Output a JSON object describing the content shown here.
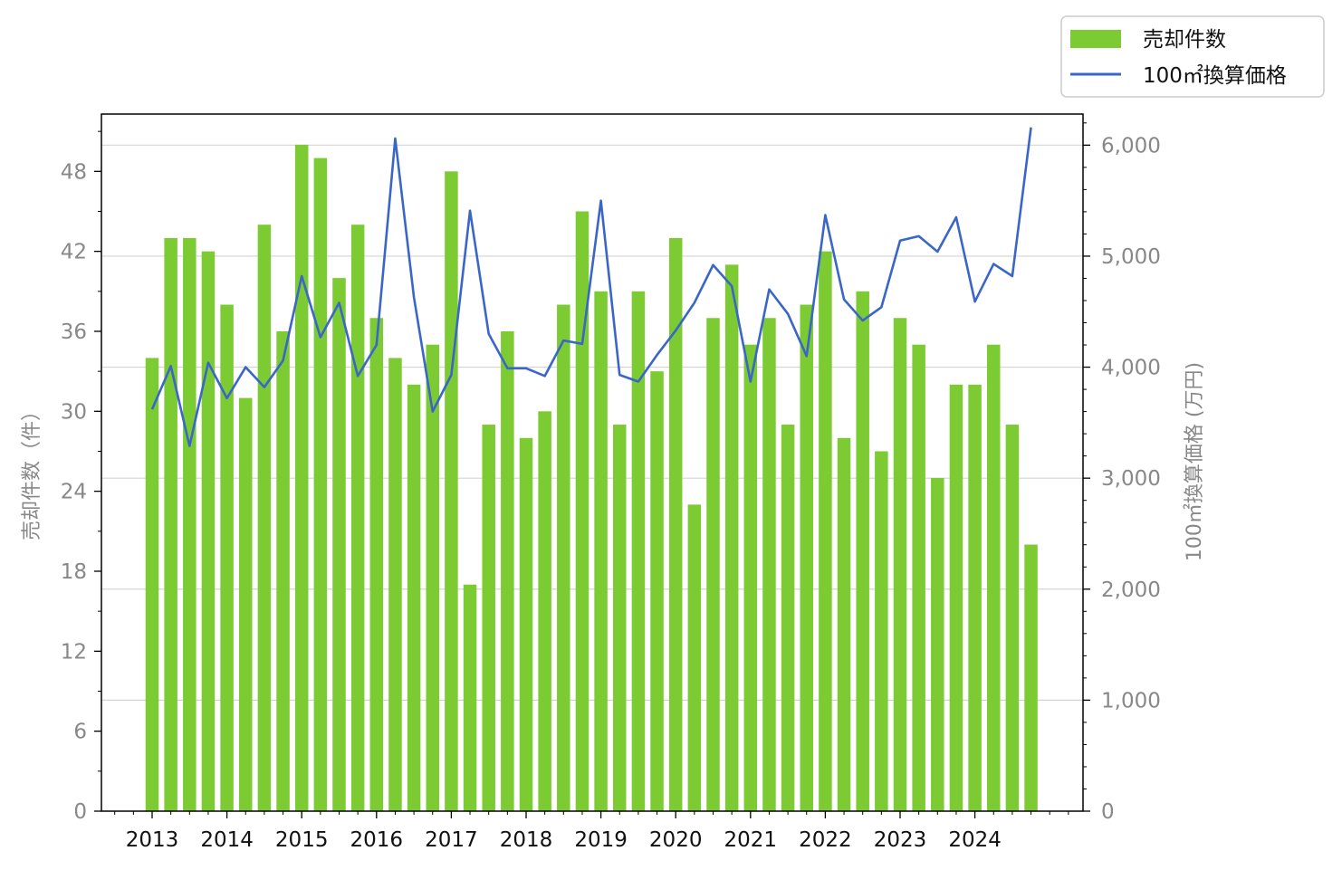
{
  "chart_data": {
    "type": "bar",
    "x_ticks": [
      "2013",
      "2014",
      "2015",
      "2016",
      "2017",
      "2018",
      "2019",
      "2020",
      "2021",
      "2022",
      "2023",
      "2024"
    ],
    "quarters": [
      "2013Q1",
      "2013Q2",
      "2013Q3",
      "2013Q4",
      "2014Q1",
      "2014Q2",
      "2014Q3",
      "2014Q4",
      "2015Q1",
      "2015Q2",
      "2015Q3",
      "2015Q4",
      "2016Q1",
      "2016Q2",
      "2016Q3",
      "2016Q4",
      "2017Q1",
      "2017Q2",
      "2017Q3",
      "2017Q4",
      "2018Q1",
      "2018Q2",
      "2018Q3",
      "2018Q4",
      "2019Q1",
      "2019Q2",
      "2019Q3",
      "2019Q4",
      "2020Q1",
      "2020Q2",
      "2020Q3",
      "2020Q4",
      "2021Q1",
      "2021Q2",
      "2021Q3",
      "2021Q4",
      "2022Q1",
      "2022Q2",
      "2022Q3",
      "2022Q4",
      "2023Q1",
      "2023Q2",
      "2023Q3",
      "2023Q4",
      "2024Q1",
      "2024Q2",
      "2024Q3",
      "2024Q4"
    ],
    "series": [
      {
        "name": "売却件数",
        "kind": "bar",
        "axis": "left",
        "color": "#7dcb33",
        "values": [
          34,
          43,
          43,
          42,
          38,
          31,
          44,
          36,
          50,
          49,
          40,
          44,
          37,
          34,
          32,
          35,
          48,
          17,
          29,
          36,
          28,
          30,
          38,
          45,
          39,
          29,
          39,
          33,
          43,
          23,
          37,
          41,
          35,
          37,
          29,
          38,
          42,
          28,
          39,
          27,
          37,
          35,
          25,
          32,
          32,
          35,
          29,
          20
        ]
      },
      {
        "name": "100㎡換算価格",
        "kind": "line",
        "axis": "right",
        "color": "#3a66c8",
        "values": [
          3620,
          4010,
          3290,
          4040,
          3720,
          4000,
          3820,
          4060,
          4820,
          4270,
          4580,
          3920,
          4200,
          6060,
          4630,
          3600,
          3930,
          5410,
          4300,
          3990,
          3990,
          3920,
          4240,
          4210,
          5500,
          3930,
          3870,
          4110,
          4330,
          4580,
          4920,
          4730,
          3870,
          4700,
          4480,
          4100,
          5370,
          4610,
          4420,
          4540,
          5140,
          5180,
          5040,
          5350,
          4590,
          4930,
          4820,
          6160
        ]
      }
    ],
    "y_left": {
      "label": "売却件数（件）",
      "ylim": [
        0,
        52.3
      ],
      "ticks": [
        0,
        6,
        12,
        18,
        24,
        30,
        36,
        42,
        48
      ]
    },
    "y_right": {
      "label": "100㎡換算価格 (万円)",
      "ylim": [
        0,
        6280
      ],
      "ticks": [
        0,
        1000,
        2000,
        3000,
        4000,
        5000,
        6000
      ],
      "tick_labels": [
        "0",
        "1,000",
        "2,000",
        "3,000",
        "4,000",
        "5,000",
        "6,000"
      ]
    },
    "grid": "horizontal (right axis)",
    "legend": {
      "placement": "top-right, outside axes",
      "entries": [
        "売却件数",
        "100㎡換算価格"
      ]
    }
  }
}
